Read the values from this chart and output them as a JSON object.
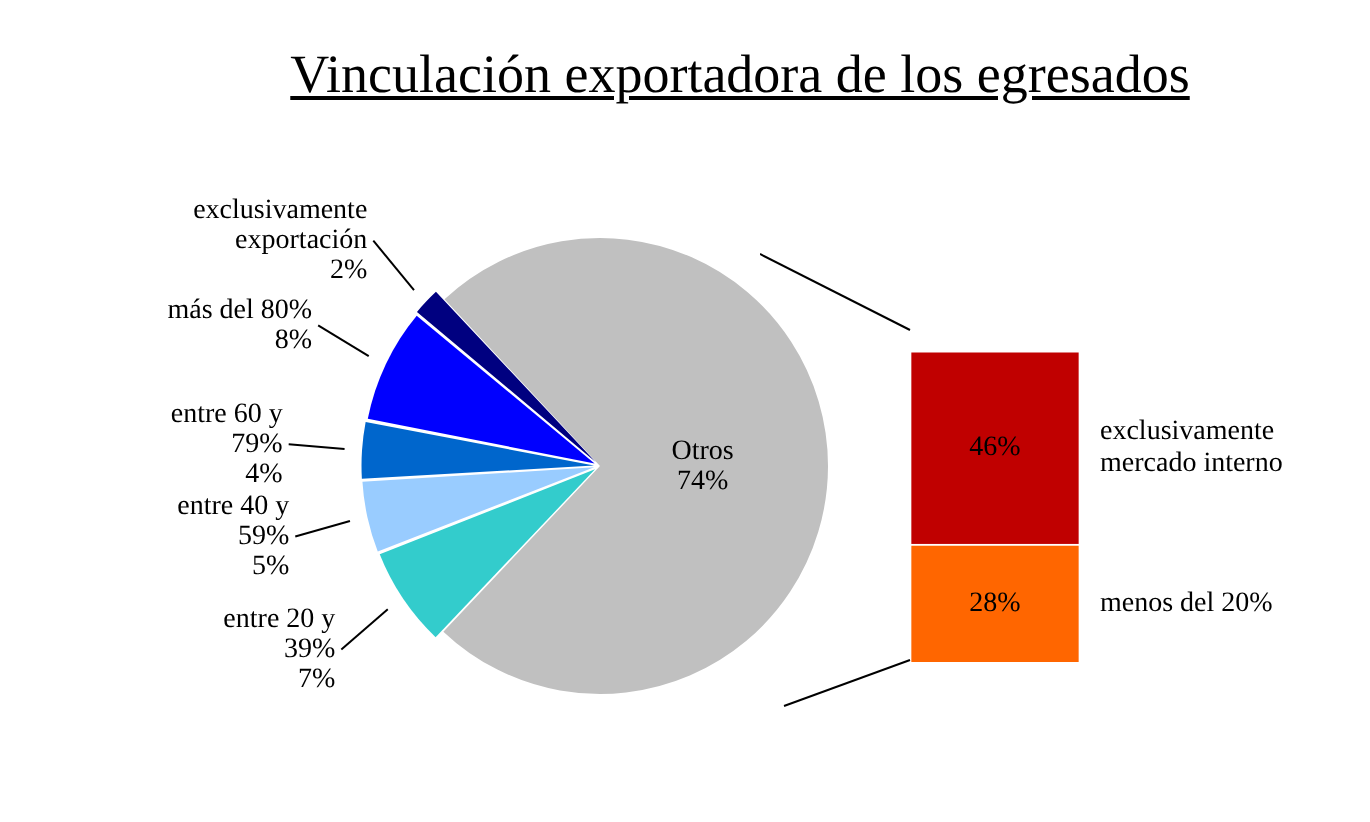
{
  "chart_data": [
    {
      "type": "pie",
      "title": "Vinculación exportadora de los egresados",
      "categories": [
        "Otros",
        "entre 20 y 39%",
        "entre 40 y 59%",
        "entre 60 y 79%",
        "más del 80%",
        "exclusivamente exportación"
      ],
      "values": [
        74,
        7,
        5,
        4,
        8,
        2
      ],
      "colors": [
        "#c0c0c0",
        "#33cccc",
        "#99ccff",
        "#0066cc",
        "#0000ff",
        "#000080"
      ],
      "value_labels": [
        "74%",
        "7%",
        "5%",
        "4%",
        "8%",
        "2%"
      ],
      "legend": false
    },
    {
      "type": "bar",
      "stacked": true,
      "categories": [
        null
      ],
      "tick_labels": false,
      "legend": false,
      "series": [
        {
          "name": "menos del 20%",
          "color": "#ff6600",
          "values": [
            28
          ],
          "value_labels": [
            "28%"
          ]
        },
        {
          "name": "exclusivamente mercado interno",
          "color": "#c00000",
          "values": [
            46
          ],
          "value_labels": [
            "46%"
          ]
        }
      ]
    }
  ]
}
